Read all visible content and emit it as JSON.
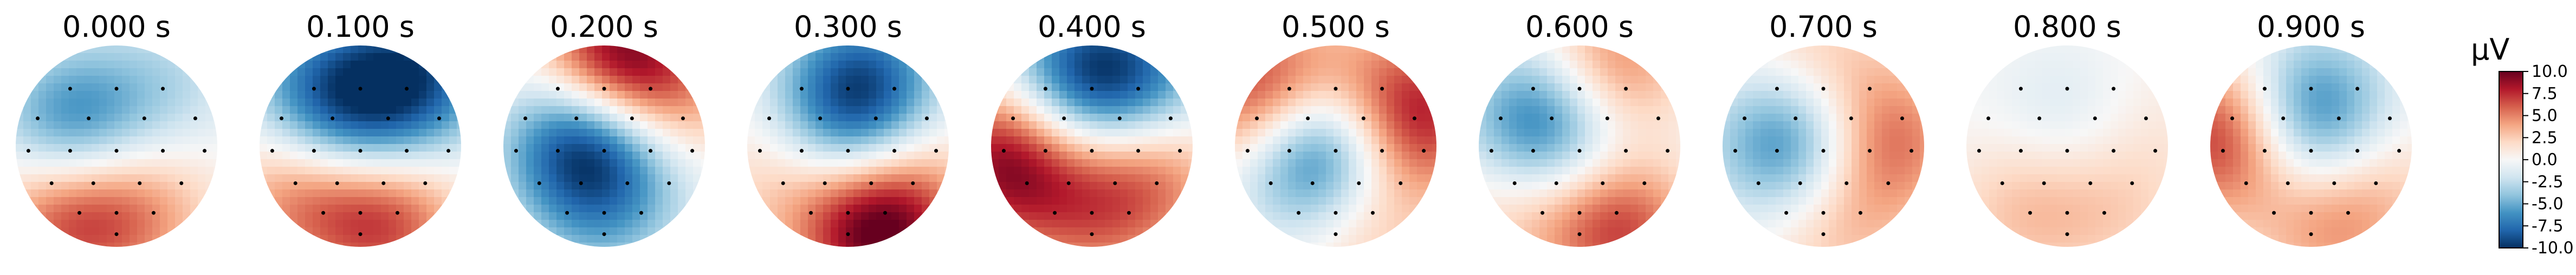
{
  "chart_data": {
    "type": "heatmap",
    "titles": [
      "0.000 s",
      "0.100 s",
      "0.200 s",
      "0.300 s",
      "0.400 s",
      "0.500 s",
      "0.600 s",
      "0.700 s",
      "0.800 s",
      "0.900 s"
    ],
    "colorbar": {
      "unit": "µV",
      "range": [
        -10.0,
        10.0
      ],
      "ticks": [
        "10.0",
        "7.5",
        "5.0",
        "2.5",
        "0.0",
        "-2.5",
        "-5.0",
        "-7.5",
        "-10.0"
      ],
      "colormap": [
        "#053061",
        "#2166ac",
        "#4393c3",
        "#92c5de",
        "#d1e5f0",
        "#f7f7f7",
        "#fddbc7",
        "#f4a582",
        "#d6604d",
        "#b2182b",
        "#67001f"
      ]
    },
    "maps": [
      {
        "t": 0.0,
        "sources": [
          {
            "x": -0.45,
            "y": 0.18,
            "v": -7
          },
          {
            "x": 0.5,
            "y": 0.5,
            "v": -3
          },
          {
            "x": -0.55,
            "y": -0.65,
            "v": 6
          },
          {
            "x": 0.15,
            "y": -0.7,
            "v": 4
          },
          {
            "x": 0.55,
            "y": -0.1,
            "v": 1
          }
        ]
      },
      {
        "t": 0.1,
        "sources": [
          {
            "x": 0.55,
            "y": 0.7,
            "v": -8
          },
          {
            "x": -0.4,
            "y": 0.55,
            "v": -6
          },
          {
            "x": 0.0,
            "y": 0.1,
            "v": -4
          },
          {
            "x": 0.25,
            "y": -0.7,
            "v": 7
          },
          {
            "x": -0.6,
            "y": -0.45,
            "v": 5
          }
        ]
      },
      {
        "t": 0.2,
        "sources": [
          {
            "x": 0.1,
            "y": 0.85,
            "v": 10
          },
          {
            "x": -0.2,
            "y": 0.05,
            "v": -10
          },
          {
            "x": 0.5,
            "y": -0.1,
            "v": -2
          },
          {
            "x": 0.0,
            "y": -0.7,
            "v": -3
          },
          {
            "x": 0.7,
            "y": 0.4,
            "v": 4
          }
        ]
      },
      {
        "t": 0.3,
        "sources": [
          {
            "x": 0.15,
            "y": 0.6,
            "v": -8
          },
          {
            "x": -0.1,
            "y": 0.1,
            "v": -4
          },
          {
            "x": 0.3,
            "y": -0.85,
            "v": 10
          },
          {
            "x": -0.6,
            "y": -0.3,
            "v": 3
          },
          {
            "x": 0.7,
            "y": -0.3,
            "v": 2
          }
        ]
      },
      {
        "t": 0.4,
        "sources": [
          {
            "x": -0.1,
            "y": 0.7,
            "v": -8
          },
          {
            "x": 0.55,
            "y": 0.65,
            "v": -5
          },
          {
            "x": -0.85,
            "y": -0.15,
            "v": 9
          },
          {
            "x": 0.6,
            "y": -0.25,
            "v": 5
          },
          {
            "x": 0.0,
            "y": -0.7,
            "v": 4
          }
        ]
      },
      {
        "t": 0.5,
        "sources": [
          {
            "x": -0.2,
            "y": -0.05,
            "v": -10
          },
          {
            "x": -0.75,
            "y": 0.5,
            "v": 8
          },
          {
            "x": 0.8,
            "y": 0.3,
            "v": 8
          },
          {
            "x": 0.1,
            "y": 0.7,
            "v": 2
          },
          {
            "x": 0.3,
            "y": -0.8,
            "v": 3
          }
        ]
      },
      {
        "t": 0.6,
        "sources": [
          {
            "x": -0.35,
            "y": 0.2,
            "v": -9
          },
          {
            "x": 0.3,
            "y": 0.75,
            "v": 6
          },
          {
            "x": 0.4,
            "y": -0.8,
            "v": 7
          },
          {
            "x": 0.7,
            "y": 0.05,
            "v": -1
          },
          {
            "x": -0.6,
            "y": -0.5,
            "v": 3
          }
        ]
      },
      {
        "t": 0.7,
        "sources": [
          {
            "x": -0.3,
            "y": 0.05,
            "v": -8
          },
          {
            "x": 0.6,
            "y": 0.05,
            "v": 6
          },
          {
            "x": -0.1,
            "y": 0.8,
            "v": 3
          },
          {
            "x": 0.1,
            "y": -0.8,
            "v": 3
          }
        ]
      },
      {
        "t": 0.8,
        "sources": [
          {
            "x": 0.0,
            "y": 0.2,
            "v": -2
          },
          {
            "x": -0.4,
            "y": -0.6,
            "v": 3
          },
          {
            "x": 0.5,
            "y": -0.6,
            "v": 2
          },
          {
            "x": 0.8,
            "y": 0.2,
            "v": 1
          }
        ]
      },
      {
        "t": 0.9,
        "sources": [
          {
            "x": 0.0,
            "y": 0.3,
            "v": -8
          },
          {
            "x": -0.85,
            "y": 0.1,
            "v": 8
          },
          {
            "x": 0.2,
            "y": -0.8,
            "v": 4
          },
          {
            "x": 0.7,
            "y": -0.3,
            "v": 2
          }
        ]
      }
    ]
  }
}
